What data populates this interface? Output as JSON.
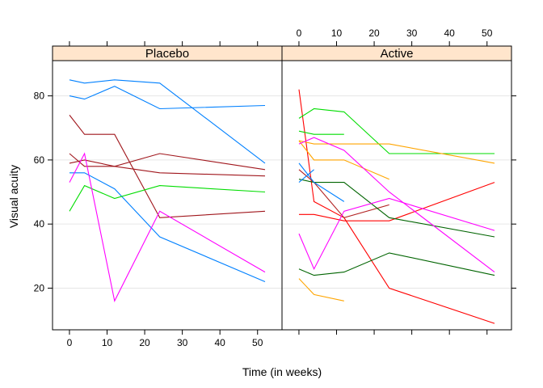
{
  "chart_data": {
    "type": "line",
    "xlabel": "Time (in weeks)",
    "ylabel": "Visual acuity",
    "xlim": [
      -4.5,
      56.5
    ],
    "ylim": [
      7,
      91
    ],
    "x_ticks": [
      0,
      10,
      20,
      30,
      40,
      50
    ],
    "y_ticks": [
      20,
      40,
      60,
      80
    ],
    "strip_color": "#ffe5cc",
    "panels": [
      {
        "name": "Placebo",
        "series": [
          {
            "color": "#0080ff",
            "x": [
              0,
              4,
              12,
              24,
              52
            ],
            "y": [
              85,
              84,
              85,
              84,
              59
            ]
          },
          {
            "color": "#0080ff",
            "x": [
              0,
              4,
              12,
              24,
              52
            ],
            "y": [
              80,
              79,
              83,
              76,
              77
            ]
          },
          {
            "color": "#0080ff",
            "x": [
              0,
              4,
              12,
              24,
              52
            ],
            "y": [
              56,
              56,
              51,
              36,
              22
            ]
          },
          {
            "color": "#a0161c",
            "x": [
              0,
              4,
              12,
              24,
              52
            ],
            "y": [
              74,
              68,
              68,
              42,
              44
            ]
          },
          {
            "color": "#a0161c",
            "x": [
              0,
              4,
              12,
              24,
              52
            ],
            "y": [
              59,
              60,
              58,
              62,
              57
            ]
          },
          {
            "color": "#a0161c",
            "x": [
              0,
              4,
              12,
              24,
              52
            ],
            "y": [
              62,
              58,
              58,
              56,
              55
            ]
          },
          {
            "color": "#00dd00",
            "x": [
              0,
              4,
              12,
              24,
              52
            ],
            "y": [
              44,
              52,
              48,
              52,
              50
            ]
          },
          {
            "color": "#ff00ff",
            "x": [
              0,
              4,
              12,
              24,
              52
            ],
            "y": [
              53,
              62,
              16,
              44,
              25
            ]
          }
        ]
      },
      {
        "name": "Active",
        "series": [
          {
            "color": "#ff0000",
            "x": [
              0,
              4,
              12,
              24,
              52
            ],
            "y": [
              82,
              47,
              42,
              20,
              9
            ]
          },
          {
            "color": "#ff0000",
            "x": [
              0,
              4,
              12,
              24,
              52
            ],
            "y": [
              43,
              43,
              41,
              41,
              53
            ]
          },
          {
            "color": "#b22222",
            "x": [
              0,
              4,
              12,
              24
            ],
            "y": [
              57,
              53,
              42,
              46
            ]
          },
          {
            "color": "#00dd00",
            "x": [
              0,
              4,
              12,
              24,
              52
            ],
            "y": [
              73,
              76,
              75,
              62,
              62
            ]
          },
          {
            "color": "#00dd00",
            "x": [
              0,
              4,
              12
            ],
            "y": [
              69,
              68,
              68
            ]
          },
          {
            "color": "#ffa500",
            "x": [
              0,
              4,
              12,
              24,
              52
            ],
            "y": [
              66,
              65,
              65,
              65,
              59
            ]
          },
          {
            "color": "#ffa500",
            "x": [
              0,
              4,
              12,
              24
            ],
            "y": [
              66,
              60,
              60,
              54
            ]
          },
          {
            "color": "#ffa500",
            "x": [
              0,
              4,
              12
            ],
            "y": [
              23,
              18,
              16
            ]
          },
          {
            "color": "#006400",
            "x": [
              0,
              4,
              12,
              24,
              52
            ],
            "y": [
              54,
              53,
              53,
              42,
              36
            ]
          },
          {
            "color": "#006400",
            "x": [
              0,
              4,
              12,
              24,
              52
            ],
            "y": [
              26,
              24,
              25,
              31,
              24
            ]
          },
          {
            "color": "#ff00ff",
            "x": [
              0,
              4,
              12,
              24,
              52
            ],
            "y": [
              37,
              26,
              44,
              48,
              38
            ]
          },
          {
            "color": "#ff00ff",
            "x": [
              0,
              4,
              12,
              24,
              52
            ],
            "y": [
              65,
              67,
              63,
              50,
              25
            ]
          },
          {
            "color": "#0080ff",
            "x": [
              0,
              4,
              12
            ],
            "y": [
              59,
              53,
              47
            ]
          },
          {
            "color": "#0080ff",
            "x": [
              0,
              4
            ],
            "y": [
              53,
              57
            ]
          }
        ]
      }
    ]
  }
}
